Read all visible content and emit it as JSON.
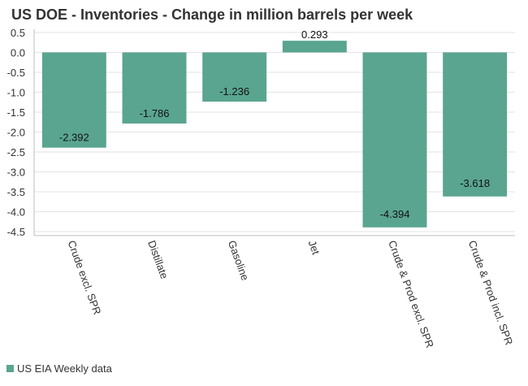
{
  "chart_data": {
    "type": "bar",
    "title": "US DOE - Inventories - Change in million barrels per week",
    "xlabel": "",
    "ylabel": "",
    "categories": [
      "Crude excl. SPR",
      "Distillate",
      "Gasoline",
      "Jet",
      "Crude & Prod excl. SPR",
      "Crude & Prod incl. SPR"
    ],
    "series": [
      {
        "name": "US EIA Weekly data",
        "values": [
          -2.392,
          -1.786,
          -1.236,
          0.293,
          -4.394,
          -3.618
        ],
        "data_labels": [
          "-2.392",
          "-1.786",
          "-1.236",
          "0.293",
          "-4.394",
          "-3.618"
        ]
      }
    ],
    "ylim": [
      -4.6,
      0.6
    ],
    "yticks": [
      0.5,
      0.0,
      -0.5,
      -1.0,
      -1.5,
      -2.0,
      -2.5,
      -3.0,
      -3.5,
      -4.0,
      -4.5
    ],
    "ytick_labels": [
      "0.5",
      "0.0",
      "-0.5",
      "-1.0",
      "-1.5",
      "-2.0",
      "-2.5",
      "-3.0",
      "-3.5",
      "-4.0",
      "-4.5"
    ],
    "grid": true,
    "legend": "bottom-left",
    "colors": {
      "bar": "#5aa590",
      "grid": "#e3e3e3",
      "axis": "#bdbdbd",
      "text": "#333333"
    }
  }
}
